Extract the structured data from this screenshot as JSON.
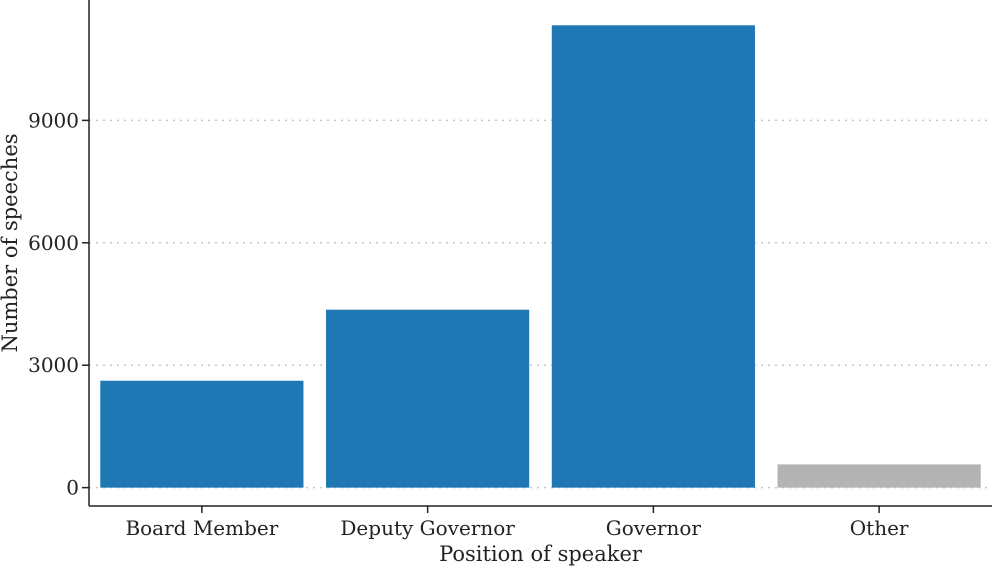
{
  "chart_data": {
    "type": "bar",
    "categories": [
      "Board Member",
      "Deputy Governor",
      "Governor",
      "Other"
    ],
    "values": [
      2620,
      4360,
      11330,
      570
    ],
    "bar_colors": [
      "#1f77b4",
      "#1f77b4",
      "#1f77b4",
      "#b3b3b3"
    ],
    "xlabel": "Position of speaker",
    "ylabel": "Number of speeches",
    "yticks": [
      0,
      3000,
      6000,
      9000
    ],
    "ylim": [
      -450,
      11950
    ],
    "grid": "horizontal dotted",
    "axis_color": "#222222",
    "grid_color": "#c8c8c8"
  }
}
